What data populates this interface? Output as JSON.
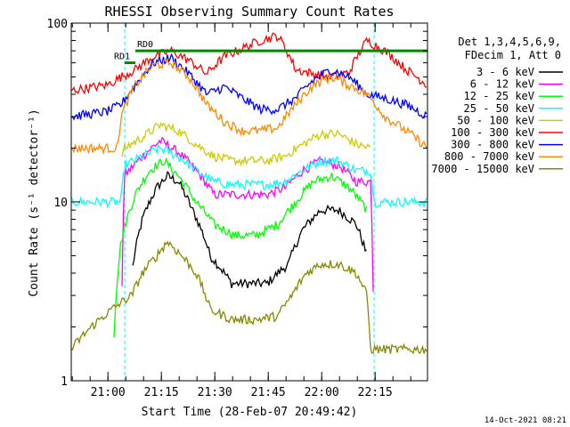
{
  "chart_data": {
    "type": "line",
    "title": "RHESSI Observing Summary Count Rates",
    "xlabel": "Start Time (28-Feb-07 20:49:42)",
    "ylabel": "Count Rate (s⁻¹ detector⁻¹)",
    "y_scale": "log",
    "ylim": [
      1,
      100
    ],
    "xlim_minutes": [
      0,
      100
    ],
    "x_ticks": [
      {
        "label": "21:00",
        "minute": 10.3
      },
      {
        "label": "21:15",
        "minute": 25.3
      },
      {
        "label": "21:30",
        "minute": 40.3
      },
      {
        "label": "21:45",
        "minute": 55.3
      },
      {
        "label": "22:00",
        "minute": 70.3
      },
      {
        "label": "22:15",
        "minute": 85.3
      }
    ],
    "y_ticks": [
      {
        "label": "1",
        "value": 1
      },
      {
        "label": "10",
        "value": 10
      },
      {
        "label": "100",
        "value": 100
      }
    ],
    "legend_header": [
      "Det 1,3,4,5,6,9,",
      "FDecim 1, Att 0"
    ],
    "legend_placement": "right",
    "series": [
      {
        "name": "3 - 6 keV",
        "color": "#000000",
        "x": [
          17,
          20,
          24,
          27,
          30,
          34,
          39,
          45,
          55,
          61,
          65,
          70,
          75,
          80,
          83
        ],
        "y": [
          4,
          8,
          12,
          14,
          13,
          9,
          5,
          3.5,
          3.5,
          4.5,
          7,
          9,
          9,
          7.5,
          5
        ]
      },
      {
        "name": "6 - 12 keV",
        "color": "#ff00ff",
        "x": [
          0,
          14,
          15,
          20,
          25,
          30,
          35,
          40,
          45,
          50,
          55,
          60,
          65,
          70,
          75,
          80,
          84,
          85,
          100
        ],
        "y": [
          0,
          0,
          14,
          18,
          22,
          19,
          15,
          11,
          11,
          11,
          11,
          12,
          15,
          17,
          16,
          13,
          13,
          0,
          0
        ]
      },
      {
        "name": "12 - 25 keV",
        "color": "#00ff00",
        "x": [
          12,
          14,
          18,
          22,
          26,
          30,
          35,
          40,
          46,
          52,
          58,
          63,
          68,
          73,
          78,
          83
        ],
        "y": [
          1.8,
          6,
          11,
          15,
          17,
          14,
          10,
          7.5,
          6.5,
          6.5,
          7.5,
          10,
          13,
          14,
          12,
          9
        ]
      },
      {
        "name": "25 - 50 keV",
        "color": "#00ffff",
        "x": [
          0,
          14,
          15,
          20,
          25,
          30,
          35,
          40,
          45,
          50,
          55,
          60,
          65,
          70,
          75,
          80,
          84,
          85,
          100
        ],
        "y": [
          10,
          10,
          16,
          18,
          20,
          18,
          15,
          13,
          12.5,
          12.5,
          12.5,
          13,
          15,
          17,
          17,
          15,
          15,
          10,
          10
        ]
      },
      {
        "name": "50 - 100 keV",
        "color": "#cccc00",
        "x": [
          14,
          15,
          20,
          25,
          30,
          35,
          40,
          45,
          50,
          55,
          60,
          65,
          70,
          75,
          80,
          84
        ],
        "y": [
          18,
          20,
          23,
          27,
          25,
          21,
          18,
          17,
          17,
          17,
          18,
          21,
          24,
          24,
          21,
          20
        ]
      },
      {
        "name": "100 - 300 keV",
        "color": "#ff0000",
        "x": [
          0,
          10,
          14,
          18,
          23,
          28,
          33,
          38,
          43,
          48,
          53,
          58,
          63,
          68,
          73,
          78,
          83,
          88,
          94,
          100
        ],
        "y": [
          42,
          45,
          50,
          55,
          65,
          70,
          62,
          52,
          65,
          72,
          80,
          85,
          55,
          52,
          50,
          53,
          80,
          70,
          55,
          45
        ]
      },
      {
        "name": "300 - 800 keV",
        "color": "#0000ff",
        "x": [
          0,
          10,
          14,
          18,
          23,
          28,
          33,
          38,
          43,
          48,
          53,
          58,
          63,
          68,
          73,
          78,
          83,
          88,
          94,
          100
        ],
        "y": [
          30,
          32,
          35,
          45,
          60,
          64,
          52,
          40,
          44,
          38,
          33,
          33,
          38,
          48,
          55,
          50,
          40,
          38,
          35,
          30
        ]
      },
      {
        "name": "800 - 7000 keV",
        "color": "#ff8800",
        "x": [
          0,
          13,
          14,
          18,
          23,
          28,
          33,
          38,
          43,
          48,
          53,
          58,
          63,
          68,
          73,
          78,
          83,
          88,
          94,
          100
        ],
        "y": [
          20,
          20,
          30,
          45,
          58,
          60,
          50,
          35,
          28,
          25,
          25,
          26,
          35,
          45,
          50,
          45,
          40,
          30,
          25,
          20
        ]
      },
      {
        "name": "7000 - 15000 keV",
        "color": "#888800",
        "x": [
          0,
          17,
          20,
          24,
          27,
          31,
          35,
          39,
          45,
          52,
          58,
          62,
          66,
          70,
          75,
          80,
          83,
          84,
          100
        ],
        "y": [
          1.5,
          3,
          4,
          5,
          6,
          5,
          4,
          2.5,
          2.2,
          2.2,
          2.3,
          3,
          4,
          4.5,
          4.5,
          4,
          3,
          1.5,
          1.5
        ]
      }
    ],
    "flag_lines": [
      {
        "label": "RD0",
        "color": "#008800",
        "x": [
          18,
          100
        ],
        "y": 70
      },
      {
        "label": "RD1",
        "color": "#008800",
        "x": [
          15,
          18
        ],
        "y": 60
      }
    ],
    "boundary_lines": {
      "color": "#00ffff",
      "x": [
        15,
        85
      ]
    },
    "timestamp": "14-Oct-2021 08:21"
  }
}
